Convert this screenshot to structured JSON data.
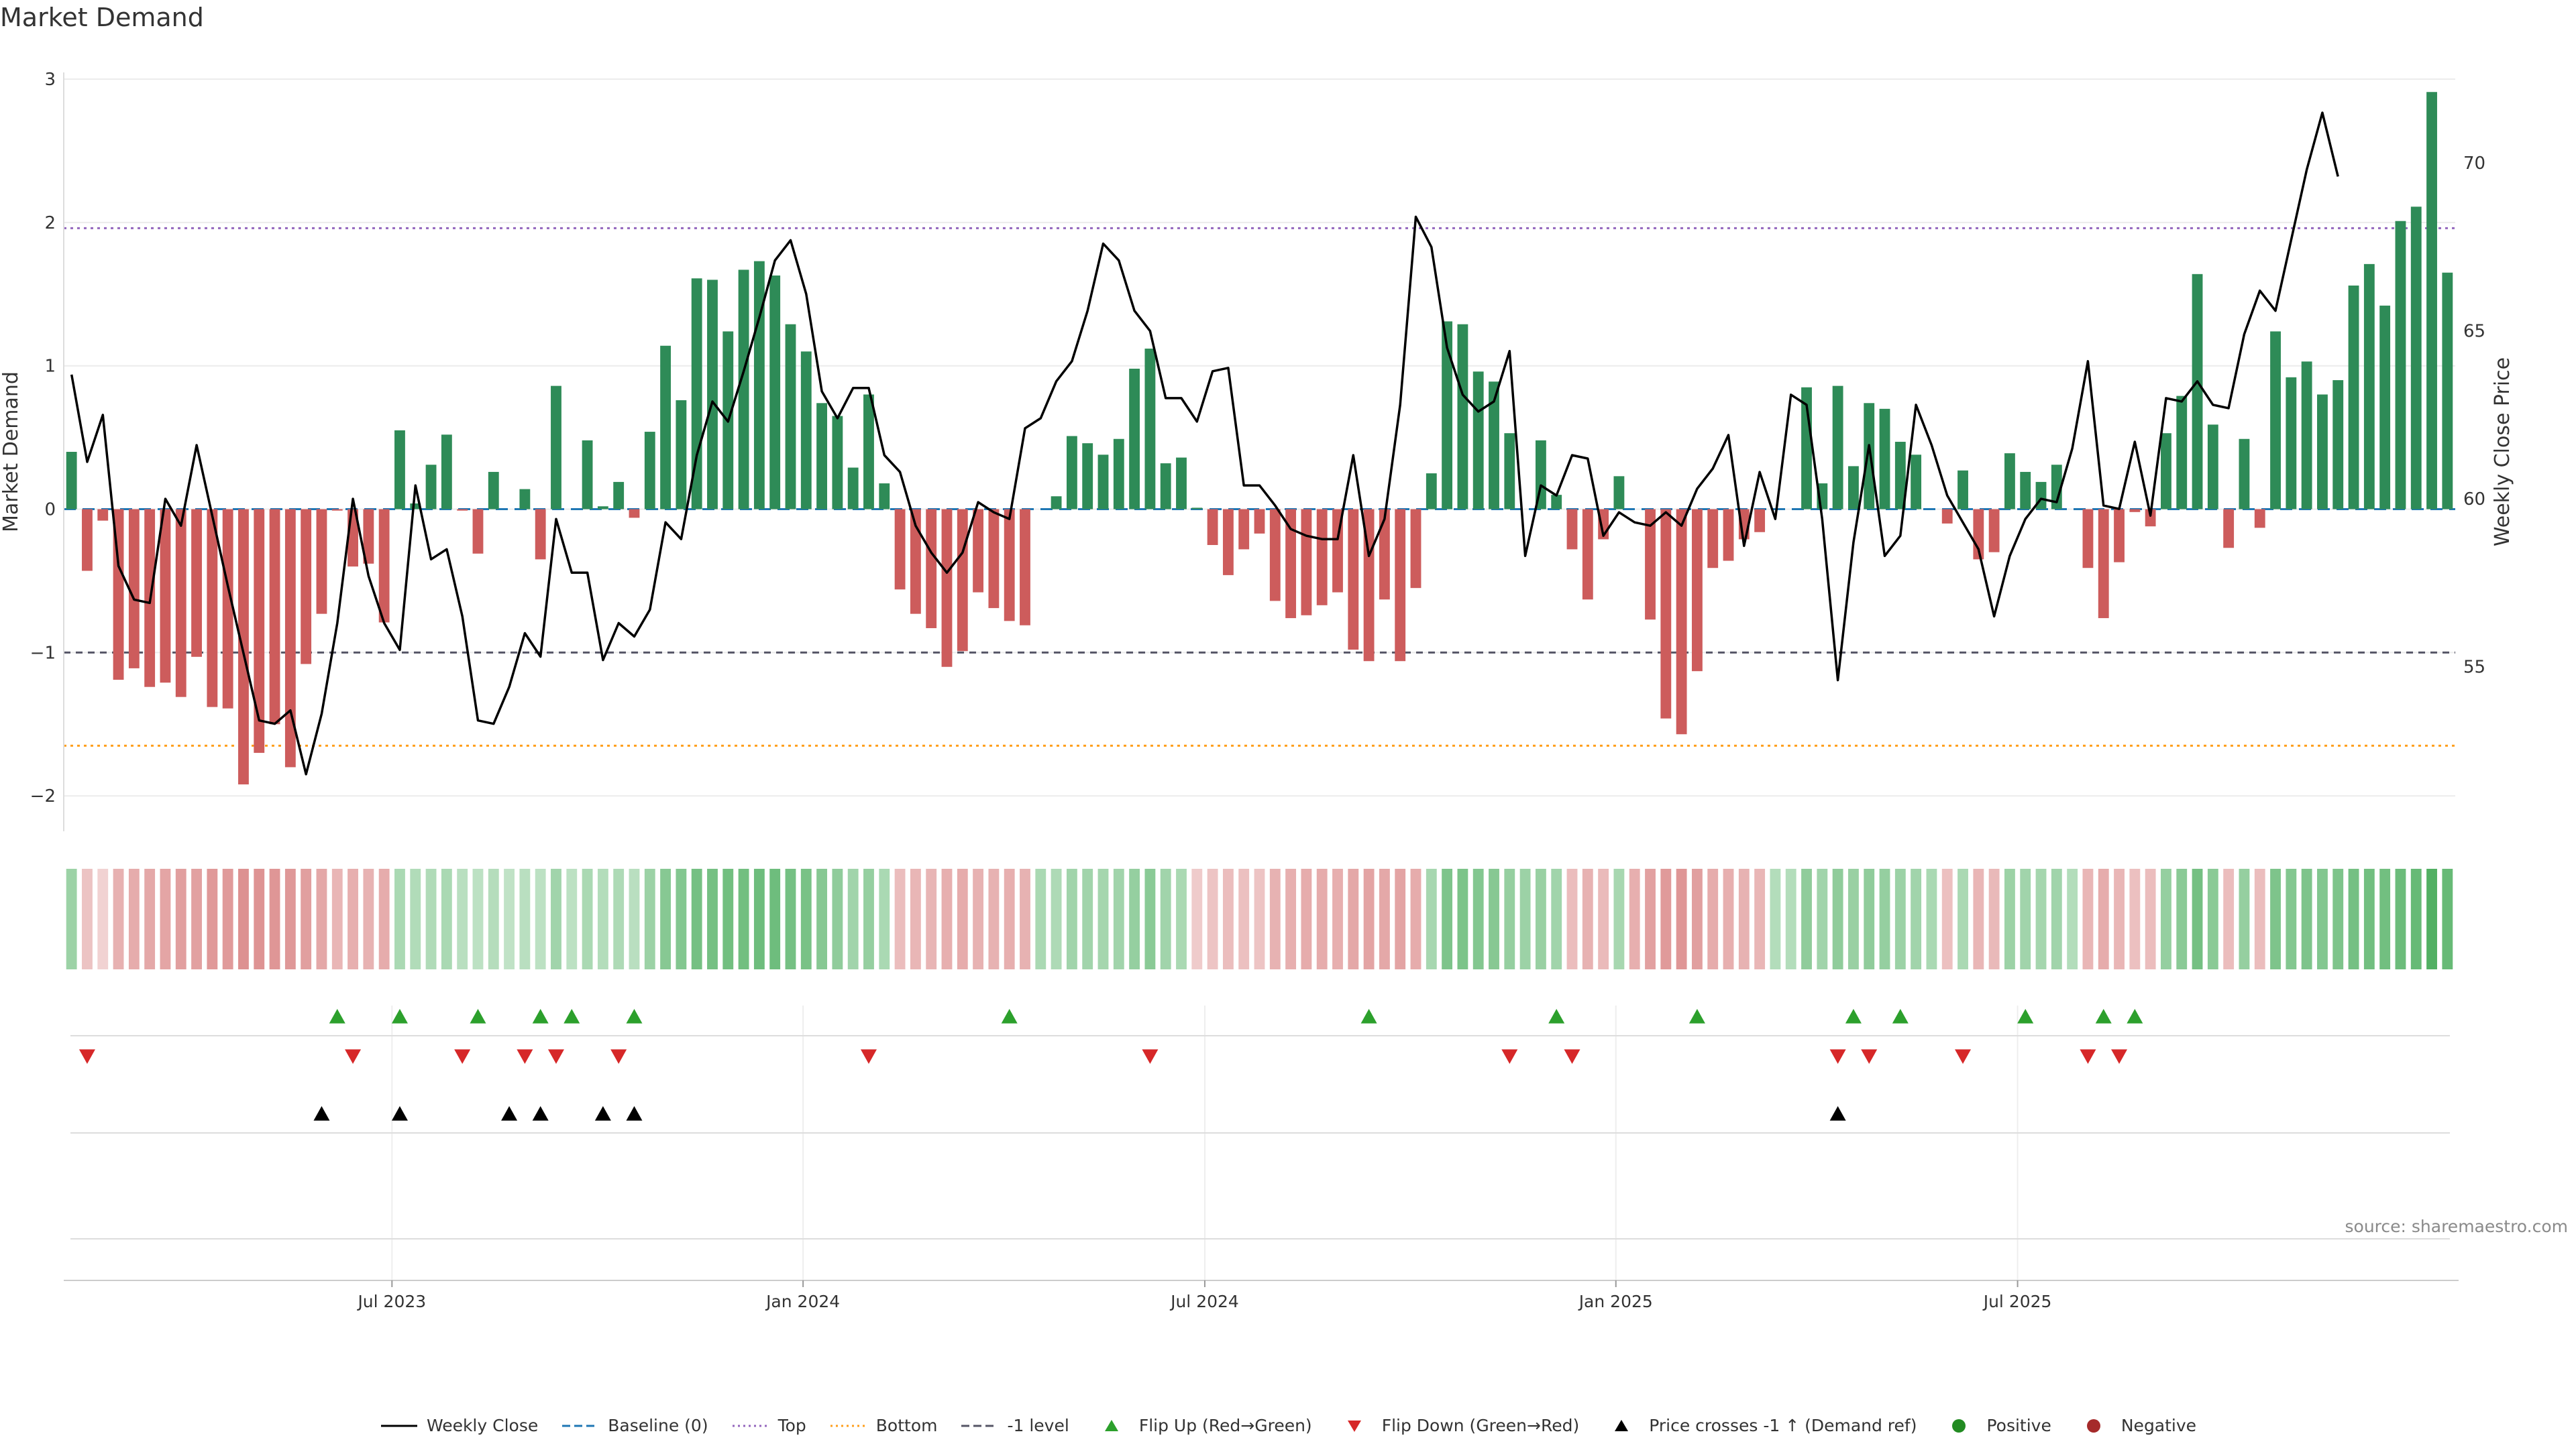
{
  "title": "Market Demand",
  "source": "source: sharemaestro.com",
  "colors": {
    "positive_bar": "#2e8b57",
    "negative_bar": "#cd5c5c",
    "price_line": "#000000",
    "baseline": "#1f77b4",
    "top_level": "#9467bd",
    "bottom_level": "#ff9f1c",
    "minus1_level": "#555566",
    "flip_up": "#2ca02c",
    "flip_down": "#d62728",
    "cross_marker": "#000000",
    "positive_dot": "#228b22",
    "negative_dot": "#a52a2a"
  },
  "legend": [
    {
      "label": "Weekly Close",
      "symbol": "line",
      "color": "#000000"
    },
    {
      "label": "Baseline (0)",
      "symbol": "dash",
      "color": "#1f77b4"
    },
    {
      "label": "Top",
      "symbol": "dot",
      "color": "#9467bd"
    },
    {
      "label": "Bottom",
      "symbol": "dot",
      "color": "#ff9f1c"
    },
    {
      "label": "-1 level",
      "symbol": "dash",
      "color": "#555566"
    },
    {
      "label": "Flip Up (Red→Green)",
      "symbol": "tri-up",
      "color": "#2ca02c"
    },
    {
      "label": "Flip Down (Green→Red)",
      "symbol": "tri-down",
      "color": "#d62728"
    },
    {
      "label": "Price crosses -1 ↑ (Demand ref)",
      "symbol": "tri-up",
      "color": "#000000"
    },
    {
      "label": "Positive",
      "symbol": "dot-marker",
      "color": "#228b22"
    },
    {
      "label": "Negative",
      "symbol": "dot-marker",
      "color": "#a52a2a"
    }
  ],
  "chart_data": {
    "type": "bar",
    "ylabel": "Market Demand",
    "y2label": "Weekly Close Price",
    "ylim": [
      -2.2,
      3.0
    ],
    "y_ticks": [
      3,
      2,
      1,
      0,
      -1,
      -2
    ],
    "y_tick_labels": [
      "3",
      "2",
      "1",
      "0",
      "−1",
      "−2"
    ],
    "y2lim": [
      50.3,
      72.5
    ],
    "y2_ticks": [
      70,
      65,
      60,
      55
    ],
    "y2_tick_labels": [
      "70",
      "65",
      "60",
      "55"
    ],
    "levels": {
      "baseline": 0,
      "top": 1.96,
      "bottom": -1.65,
      "minus1": -1
    },
    "x_range_weeks": [
      0,
      144
    ],
    "x_ticks": [
      {
        "week": 20.5,
        "label": "Jul 2023"
      },
      {
        "week": 46.8,
        "label": "Jan 2024"
      },
      {
        "week": 72.5,
        "label": "Jul 2024"
      },
      {
        "week": 98.8,
        "label": "Jan 2025"
      },
      {
        "week": 124.5,
        "label": "Jul 2025"
      }
    ],
    "series": [
      {
        "name": "Market Demand",
        "type": "bar",
        "values": [
          0.4,
          -0.43,
          -0.08,
          -1.19,
          -1.11,
          -1.24,
          -1.21,
          -1.31,
          -1.03,
          -1.38,
          -1.39,
          -1.92,
          -1.7,
          -1.5,
          -1.8,
          -1.08,
          -0.73,
          -0.01,
          -0.4,
          -0.38,
          -0.79,
          0.55,
          0.04,
          0.31,
          0.52,
          -0.01,
          -0.31,
          0.26,
          0.0,
          0.14,
          -0.35,
          0.86,
          0.0,
          0.48,
          0.02,
          0.19,
          -0.06,
          0.54,
          1.14,
          0.76,
          1.61,
          1.6,
          1.24,
          1.67,
          1.73,
          1.63,
          1.29,
          1.1,
          0.74,
          0.65,
          0.29,
          0.8,
          0.18,
          -0.56,
          -0.73,
          -0.83,
          -1.1,
          -0.99,
          -0.58,
          -0.69,
          -0.78,
          -0.81,
          0.0,
          0.09,
          0.51,
          0.46,
          0.38,
          0.49,
          0.98,
          1.12,
          0.32,
          0.36,
          0.01,
          -0.25,
          -0.46,
          -0.28,
          -0.17,
          -0.64,
          -0.76,
          -0.74,
          -0.67,
          -0.58,
          -0.98,
          -1.06,
          -0.63,
          -1.06,
          -0.55,
          0.25,
          1.31,
          1.29,
          0.96,
          0.89,
          0.53,
          0.0,
          0.48,
          0.1,
          -0.28,
          -0.63,
          -0.21,
          0.23,
          0.0,
          -0.77,
          -1.46,
          -1.57,
          -1.13,
          -0.41,
          -0.36,
          -0.21,
          -0.16,
          0.0,
          0.0,
          0.85,
          0.18,
          0.86,
          0.3,
          0.74,
          0.7,
          0.47,
          0.38,
          0.0,
          -0.1,
          0.27,
          -0.35,
          -0.3,
          0.39,
          0.26,
          0.19,
          0.31,
          0.0,
          -0.41,
          -0.76,
          -0.37,
          -0.02,
          -0.12,
          0.53,
          0.79,
          1.64,
          0.59,
          -0.27,
          0.49,
          -0.13,
          1.24,
          0.92,
          1.03,
          0.8,
          0.9,
          1.56,
          1.71,
          1.42,
          2.01,
          2.11,
          2.91,
          1.65
        ]
      },
      {
        "name": "Weekly Close",
        "type": "line",
        "values": [
          63.7,
          61.1,
          62.5,
          58.0,
          57.0,
          56.9,
          60.0,
          59.2,
          61.6,
          59.5,
          57.4,
          55.4,
          53.4,
          53.3,
          53.7,
          51.8,
          53.6,
          56.3,
          60.0,
          57.7,
          56.3,
          55.5,
          60.4,
          58.2,
          58.5,
          56.5,
          53.4,
          53.3,
          54.4,
          56.0,
          55.3,
          59.4,
          57.8,
          57.8,
          55.2,
          56.3,
          55.9,
          56.7,
          59.3,
          58.8,
          61.3,
          62.9,
          62.3,
          63.8,
          65.4,
          67.1,
          67.7,
          66.1,
          63.2,
          62.4,
          63.3,
          63.3,
          61.3,
          60.8,
          59.2,
          58.4,
          57.8,
          58.4,
          59.9,
          59.6,
          59.4,
          62.1,
          62.4,
          63.5,
          64.1,
          65.6,
          67.6,
          67.1,
          65.6,
          65.0,
          63.0,
          63.0,
          62.3,
          63.8,
          63.9,
          60.4,
          60.4,
          59.8,
          59.1,
          58.9,
          58.8,
          58.8,
          61.3,
          58.3,
          59.4,
          62.8,
          68.4,
          67.5,
          64.5,
          63.1,
          62.6,
          62.9,
          64.4,
          58.3,
          60.4,
          60.1,
          61.3,
          61.2,
          58.9,
          59.6,
          59.3,
          59.2,
          59.6,
          59.2,
          60.3,
          60.9,
          61.9,
          58.6,
          60.8,
          59.4,
          63.1,
          62.8,
          59.4,
          54.6,
          58.7,
          61.6,
          58.3,
          58.9,
          62.8,
          61.6,
          60.1,
          59.3,
          58.5,
          56.5,
          58.3,
          59.4,
          60.0,
          59.9,
          61.5,
          64.1,
          59.8,
          59.7,
          61.7,
          59.5,
          63.0,
          62.9,
          63.5,
          62.8,
          62.7,
          64.9,
          66.2,
          65.6,
          67.7,
          69.8,
          71.5,
          69.6
        ]
      }
    ],
    "heat_strip": [
      0.38,
      -0.26,
      -0.15,
      -0.39,
      -0.42,
      -0.45,
      -0.47,
      -0.52,
      -0.5,
      -0.56,
      -0.55,
      -0.62,
      -0.6,
      -0.58,
      -0.57,
      -0.52,
      -0.45,
      -0.35,
      -0.4,
      -0.38,
      -0.42,
      0.3,
      0.26,
      0.27,
      0.3,
      0.22,
      0.2,
      0.24,
      0.18,
      0.22,
      0.2,
      0.35,
      0.2,
      0.3,
      0.25,
      0.28,
      0.22,
      0.38,
      0.5,
      0.52,
      0.6,
      0.6,
      0.62,
      0.62,
      0.64,
      0.64,
      0.6,
      0.58,
      0.5,
      0.45,
      0.35,
      0.42,
      0.3,
      -0.3,
      -0.35,
      -0.36,
      -0.4,
      -0.42,
      -0.38,
      -0.38,
      -0.4,
      -0.38,
      0.3,
      0.28,
      0.35,
      0.35,
      0.33,
      0.35,
      0.42,
      0.48,
      0.35,
      0.3,
      -0.2,
      -0.25,
      -0.3,
      -0.28,
      -0.25,
      -0.38,
      -0.4,
      -0.42,
      -0.42,
      -0.4,
      -0.45,
      -0.48,
      -0.45,
      -0.48,
      -0.42,
      0.32,
      0.55,
      0.56,
      0.52,
      0.5,
      0.42,
      0.38,
      0.4,
      0.35,
      -0.3,
      -0.38,
      -0.32,
      0.32,
      -0.4,
      -0.5,
      -0.55,
      -0.58,
      -0.52,
      -0.42,
      -0.4,
      -0.38,
      -0.35,
      0.25,
      0.25,
      0.45,
      0.35,
      0.45,
      0.4,
      0.45,
      0.42,
      0.38,
      0.35,
      0.3,
      -0.28,
      0.3,
      -0.35,
      -0.33,
      0.38,
      0.35,
      0.33,
      0.35,
      0.25,
      -0.35,
      -0.42,
      -0.35,
      -0.28,
      -0.3,
      0.42,
      0.48,
      0.6,
      0.48,
      -0.3,
      0.42,
      -0.3,
      0.55,
      0.52,
      0.55,
      0.52,
      0.55,
      0.6,
      0.62,
      0.62,
      0.65,
      0.68,
      0.8,
      0.68
    ],
    "flip_up_weeks": [
      17,
      21,
      26,
      30,
      32,
      36,
      60,
      83,
      95,
      104,
      114,
      117,
      125,
      130,
      132
    ],
    "flip_down_weeks": [
      1,
      18,
      25,
      29,
      31,
      35,
      51,
      69,
      92,
      96,
      113,
      115,
      121,
      129,
      131
    ],
    "cross_up_weeks": [
      16,
      21,
      28,
      30,
      34,
      36,
      113
    ]
  }
}
